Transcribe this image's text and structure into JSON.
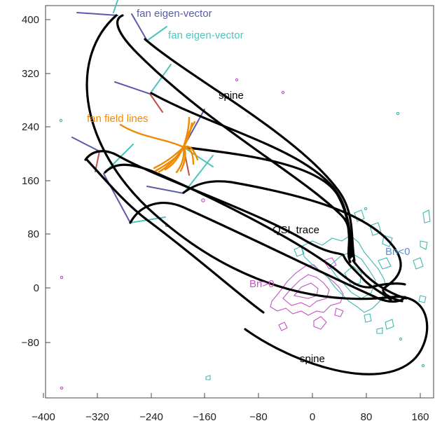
{
  "axes": {
    "x_ticks": [
      -400,
      -320,
      -240,
      -160,
      -80,
      0,
      80,
      160
    ],
    "y_ticks": [
      -80,
      0,
      80,
      160,
      240,
      320,
      400
    ],
    "xlim": [
      -400,
      180
    ],
    "ylim": [
      -170,
      420
    ]
  },
  "labels": {
    "fan_vec_blue": "fan eigen-vector",
    "fan_vec_teal": "fan eigen-vector",
    "spine_top": "spine",
    "fan_lines": "fan field lines",
    "qsl": "QSL trace",
    "bn_neg": "Bn<0",
    "bn_pos": "Bn>0",
    "spine_bottom": "spine"
  },
  "colors": {
    "blue_vec": "#5b5baa",
    "teal_vec": "#4fc4bf",
    "red_vec": "#c0504d",
    "orange": "#f08a00",
    "magenta": "#c355c3",
    "cyan": "#3fb7b0",
    "bn_neg_text": "#5b8fd6",
    "bn_pos_text": "#c355c3",
    "black": "#000000"
  }
}
